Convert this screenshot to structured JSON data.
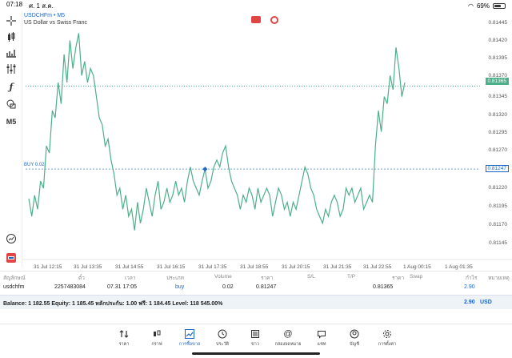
{
  "status": {
    "time": "07:18",
    "date": "ศ. 1 ส.ค.",
    "battery": "69%",
    "battery_level": 0.69
  },
  "chart": {
    "symbol": "USDCHFm • M5",
    "description": "US Dollar vs Swiss Franc",
    "buy_label": "BUY 0.02",
    "buy_price": 0.81247,
    "current_price": 0.81365,
    "current_price_label": "0.81365",
    "buy_price_label": "0.81247",
    "y_ticks": [
      "0.81445",
      "0.81420",
      "0.81395",
      "0.81370",
      "0.81345",
      "0.81320",
      "0.81295",
      "0.81270",
      "0.81220",
      "0.81195",
      "0.81170",
      "0.81145"
    ],
    "x_ticks": [
      "31 Jul 12:15",
      "31 Jul 13:35",
      "31 Jul 14:55",
      "31 Jul 16:15",
      "31 Jul 17:35",
      "31 Jul 18:55",
      "31 Jul 20:15",
      "31 Jul 21:35",
      "31 Jul 22:55",
      "1 Aug 00:15",
      "1 Aug 01:35"
    ],
    "line_color": "#4caf8a",
    "accent_color": "#1a66c9"
  },
  "chart_data": {
    "type": "line",
    "title": "USDCHFm • M5",
    "subtitle": "US Dollar vs Swiss Franc",
    "ylim": [
      0.8113,
      0.8146
    ],
    "values": [
      0.81205,
      0.8118,
      0.8121,
      0.8119,
      0.8123,
      0.8122,
      0.8128,
      0.8127,
      0.8133,
      0.8132,
      0.8137,
      0.8134,
      0.8141,
      0.8137,
      0.8143,
      0.8139,
      0.8142,
      0.8144,
      0.8138,
      0.814,
      0.8137,
      0.8139,
      0.8138,
      0.8135,
      0.8132,
      0.8131,
      0.8128,
      0.8129,
      0.8126,
      0.8124,
      0.8121,
      0.8122,
      0.8119,
      0.8121,
      0.8118,
      0.8119,
      0.8116,
      0.812,
      0.8117,
      0.8119,
      0.8122,
      0.812,
      0.8118,
      0.8121,
      0.8123,
      0.8119,
      0.812,
      0.8122,
      0.812,
      0.8121,
      0.8123,
      0.8121,
      0.8122,
      0.812,
      0.8123,
      0.8125,
      0.8123,
      0.8122,
      0.8121,
      0.8123,
      0.81247,
      0.8122,
      0.8123,
      0.8125,
      0.8126,
      0.8125,
      0.8127,
      0.8128,
      0.8125,
      0.8123,
      0.8122,
      0.8121,
      0.8119,
      0.8121,
      0.812,
      0.8122,
      0.8121,
      0.8119,
      0.8122,
      0.812,
      0.8121,
      0.8122,
      0.8121,
      0.8118,
      0.812,
      0.8122,
      0.8121,
      0.8119,
      0.812,
      0.8118,
      0.812,
      0.8119,
      0.8121,
      0.8123,
      0.8125,
      0.8124,
      0.8122,
      0.8121,
      0.8119,
      0.8118,
      0.8117,
      0.8119,
      0.8118,
      0.812,
      0.8121,
      0.812,
      0.8118,
      0.8119,
      0.8122,
      0.8121,
      0.8122,
      0.812,
      0.8121,
      0.8122,
      0.8119,
      0.812,
      0.8121,
      0.812,
      0.8128,
      0.8133,
      0.813,
      0.8135,
      0.8134,
      0.8138,
      0.8136,
      0.8142,
      0.8139,
      0.8135,
      0.8137
    ]
  },
  "toolbar": {
    "icons": [
      "crosshair-icon",
      "candles-icon",
      "bars-icon",
      "indicators-icon",
      "function-icon",
      "objects-icon",
      "timeframe-label"
    ],
    "timeframe": "M5"
  },
  "table": {
    "headers": [
      "สัญลักษณ์",
      "ตั๋ว",
      "เวลา",
      "ประเภท",
      "Volume",
      "ราคา",
      "S/L",
      "T/P",
      "ราคา",
      "Swap",
      "กำไร",
      "หมายเหตุ"
    ],
    "row": {
      "symbol": "usdchfm",
      "ticket": "2257483084",
      "time": "07.31 17:05",
      "type": "buy",
      "volume": "0.02",
      "open_price": "0.81247",
      "current": "0.81365",
      "profit": "2.90"
    }
  },
  "balance": {
    "text": "Balance: 1 182.55 Equity: 1 185.45 หลักประกัน: 1.00 ฟรี: 1 184.45 Level: 118 545.00%",
    "profit": "2.90",
    "currency": "USD"
  },
  "nav": [
    {
      "label": "ราคา",
      "icon": "quotes-icon"
    },
    {
      "label": "กราฟ",
      "icon": "chart-icon"
    },
    {
      "label": "การซื้อขาย",
      "icon": "trade-icon",
      "active": true
    },
    {
      "label": "ประวัติ",
      "icon": "history-icon"
    },
    {
      "label": "ข่าว",
      "icon": "news-icon"
    },
    {
      "label": "กล่องจดหมาย",
      "icon": "mailbox-icon"
    },
    {
      "label": "แชท",
      "icon": "chat-icon"
    },
    {
      "label": "บัญชี",
      "icon": "account-icon"
    },
    {
      "label": "การตั้งค่า",
      "icon": "settings-icon"
    }
  ]
}
